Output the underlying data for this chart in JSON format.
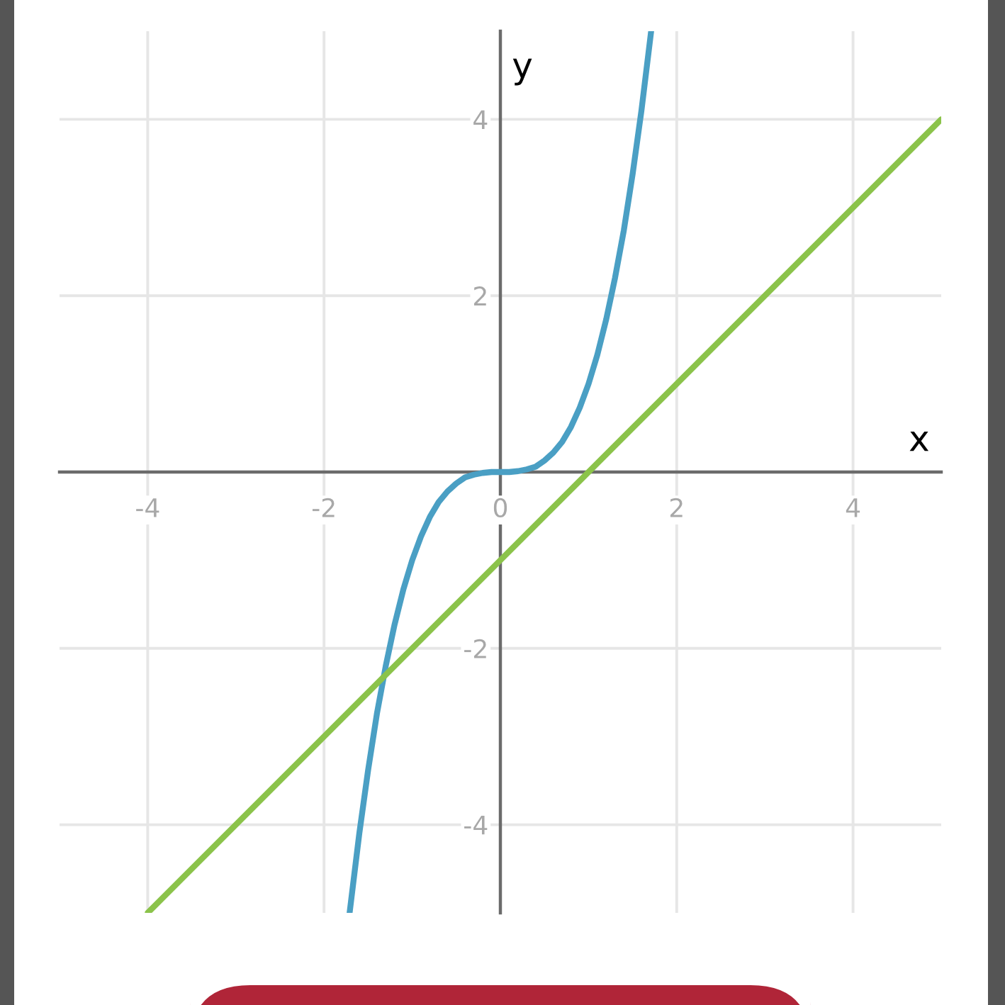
{
  "chart_data": {
    "type": "line",
    "xlabel": "x",
    "ylabel": "y",
    "series": [
      {
        "color": "#4a9fc4",
        "x": [
          -1.71,
          -1.6,
          -1.5,
          -1.4,
          -1.3,
          -1.2,
          -1.1,
          -1.0,
          -0.9,
          -0.8,
          -0.7,
          -0.6,
          -0.5,
          -0.4,
          -0.3,
          -0.2,
          -0.1,
          0,
          0.1,
          0.2,
          0.3,
          0.4,
          0.5,
          0.6,
          0.7,
          0.8,
          0.9,
          1.0,
          1.1,
          1.2,
          1.3,
          1.4,
          1.5,
          1.6,
          1.71
        ],
        "values": [
          -5.0,
          -4.1,
          -3.38,
          -2.74,
          -2.2,
          -1.73,
          -1.33,
          -1.0,
          -0.73,
          -0.51,
          -0.34,
          -0.22,
          -0.13,
          -0.06,
          -0.03,
          -0.01,
          0,
          0,
          0,
          0.01,
          0.03,
          0.06,
          0.13,
          0.22,
          0.34,
          0.51,
          0.73,
          1.0,
          1.33,
          1.73,
          2.2,
          2.74,
          3.38,
          4.1,
          5.0
        ]
      },
      {
        "color": "#8bc34a",
        "x": [
          -4,
          0,
          1,
          5
        ],
        "values": [
          -5,
          -1,
          0,
          4
        ]
      }
    ],
    "xlim": [
      -5,
      5
    ],
    "ylim": [
      -5,
      5
    ],
    "xticks": [
      -4,
      -2,
      0,
      2,
      4
    ],
    "yticks": [
      -4,
      -2,
      2,
      4
    ],
    "grid": true,
    "marker": "none",
    "line_style": "solid"
  }
}
